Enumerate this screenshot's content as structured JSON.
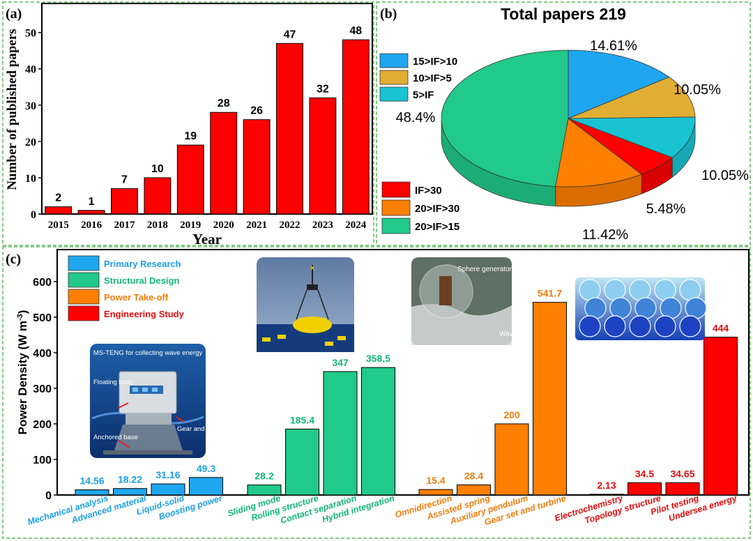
{
  "colors": {
    "panel_border": "#5cb85c",
    "red": "#ff0000",
    "blue": "#1ea7f0",
    "green": "#21c98a",
    "orange": "#ff7f00",
    "gold": "#e1ae34",
    "cyan": "#19c3d2",
    "blue_text": "#1b9fe6",
    "green_text": "#13b57a",
    "orange_text": "#f07d0d",
    "red_text": "#e00d0d"
  },
  "panel_labels": {
    "a": "(a)",
    "b": "(b)",
    "c": "(c)"
  },
  "chart_data": [
    {
      "type": "bar",
      "panel": "a",
      "title": "",
      "xlabel": "Year",
      "ylabel": "Number of published papers",
      "ylim": [
        0,
        58
      ],
      "yticks": [
        0,
        10,
        20,
        30,
        40,
        50
      ],
      "categories": [
        "2015",
        "2016",
        "2017",
        "2018",
        "2019",
        "2020",
        "2021",
        "2022",
        "2023",
        "2024"
      ],
      "values": [
        2,
        1,
        7,
        10,
        19,
        28,
        26,
        47,
        32,
        48
      ],
      "labels": [
        "2",
        "1",
        "7",
        "10",
        "19",
        "28",
        "26",
        "47",
        "32",
        "48"
      ]
    },
    {
      "type": "pie",
      "panel": "b",
      "title": "Total papers 219",
      "slices": [
        {
          "name": "15>IF>10",
          "value": 14.61,
          "label": "14.61%",
          "color": "#1ea7f0"
        },
        {
          "name": "10>IF>5",
          "value": 10.05,
          "label": "10.05%",
          "color": "#e1ae34"
        },
        {
          "name": "5>IF",
          "value": 10.05,
          "label": "10.05%",
          "color": "#19c3d2"
        },
        {
          "name": "IF>30",
          "value": 5.48,
          "label": "5.48%",
          "color": "#ff0000"
        },
        {
          "name": "20>IF>30",
          "value": 11.42,
          "label": "11.42%",
          "color": "#ff7f00"
        },
        {
          "name": "20>IF>15",
          "value": 48.4,
          "label": "48.4%",
          "color": "#21c98a"
        }
      ],
      "legend_top": [
        "15>IF>10",
        "10>IF>5",
        "5>IF"
      ],
      "legend_bottom": [
        "IF>30",
        "20>IF>30",
        "20>IF>15"
      ]
    },
    {
      "type": "bar",
      "panel": "c",
      "ylabel": "Power Density (W m-3)",
      "ylabel_parts": {
        "main": "Power Density (W m",
        "sup": "-3",
        "close": ")"
      },
      "ylim": [
        0,
        690
      ],
      "yticks": [
        0,
        100,
        200,
        300,
        400,
        500,
        600
      ],
      "legend": [
        {
          "name": "Primary Research",
          "color": "#1ea7f0"
        },
        {
          "name": "Structural Design",
          "color": "#21c98a"
        },
        {
          "name": "Power Take-off",
          "color": "#ff7f00"
        },
        {
          "name": "Engineering Study",
          "color": "#ff0000"
        }
      ],
      "groups": [
        {
          "name": "Primary Research",
          "bars": [
            {
              "category": "Mechanical analysis",
              "value": 14.56,
              "label": "14.56"
            },
            {
              "category": "Advanced material",
              "value": 18.22,
              "label": "18.22"
            },
            {
              "category": "Liquid-solid",
              "value": 31.16,
              "label": "31.16"
            },
            {
              "category": "Boosting power",
              "value": 49.3,
              "label": "49.3"
            }
          ]
        },
        {
          "name": "Structural Design",
          "bars": [
            {
              "category": "Sliding mode",
              "value": 28.2,
              "label": "28.2"
            },
            {
              "category": "Rolling structure",
              "value": 185.4,
              "label": "185.4"
            },
            {
              "category": "Contact separation",
              "value": 347,
              "label": "347"
            },
            {
              "category": "Hybrid integration",
              "value": 358.5,
              "label": "358.5"
            }
          ]
        },
        {
          "name": "Power Take-off",
          "bars": [
            {
              "category": "Omnidirection",
              "value": 15.4,
              "label": "15.4"
            },
            {
              "category": "Assisted spring",
              "value": 28.4,
              "label": "28.4"
            },
            {
              "category": "Auxiliary pendulum",
              "value": 200,
              "label": "200"
            },
            {
              "category": "Gear set and turbine",
              "value": 541.7,
              "label": "541.7"
            }
          ]
        },
        {
          "name": "Engineering Study",
          "bars": [
            {
              "category": "Electrochemistry",
              "value": 2.13,
              "label": "2.13"
            },
            {
              "category": "Topology structure",
              "value": 34.5,
              "label": "34.5"
            },
            {
              "category": "Pilot testing",
              "value": 34.65,
              "label": "34.65"
            },
            {
              "category": "Undersea energy",
              "value": 444,
              "label": "444"
            }
          ]
        }
      ]
    }
  ],
  "insets": {
    "ms_teng": {
      "title": "MS-TENG  for collecting wave energy",
      "floating": "Floating body",
      "gear": "Gear and rack",
      "anchored": "Anchored base"
    },
    "sphere": {
      "sphere": "Sphere generator",
      "wave": "Wave"
    }
  }
}
